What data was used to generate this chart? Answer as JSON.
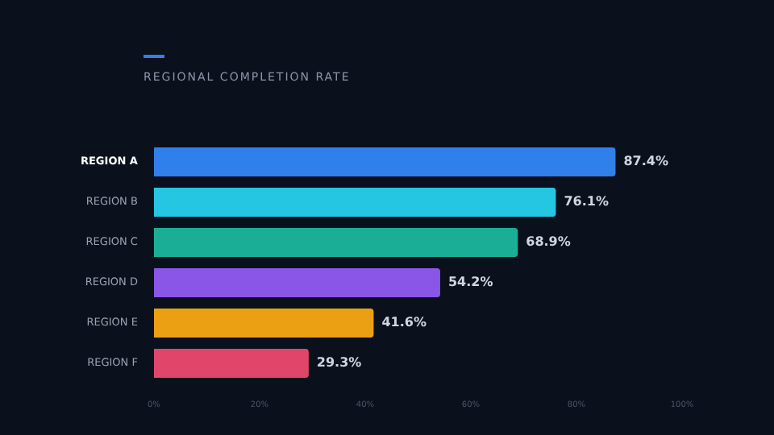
{
  "chart_data": {
    "type": "bar",
    "orientation": "horizontal",
    "title": "REGIONAL COMPLETION RATE",
    "categories": [
      "REGION A",
      "REGION B",
      "REGION C",
      "REGION D",
      "REGION E",
      "REGION F"
    ],
    "values": [
      87.4,
      76.1,
      68.9,
      54.2,
      41.6,
      29.3
    ],
    "value_labels": [
      "87.4%",
      "76.1%",
      "68.9%",
      "54.2%",
      "41.6%",
      "29.3%"
    ],
    "colors": [
      "#2f80ea",
      "#24c6e2",
      "#1aae96",
      "#8a56e8",
      "#eba014",
      "#e2456a"
    ],
    "xlim": [
      0,
      100
    ],
    "xticks": [
      {
        "value": 0,
        "label": "0%"
      },
      {
        "value": 20,
        "label": "20%"
      },
      {
        "value": 40,
        "label": "40%"
      },
      {
        "value": 60,
        "label": "60%"
      },
      {
        "value": 80,
        "label": "80%"
      },
      {
        "value": 100,
        "label": "100%"
      }
    ],
    "grid": false,
    "legend": false
  }
}
